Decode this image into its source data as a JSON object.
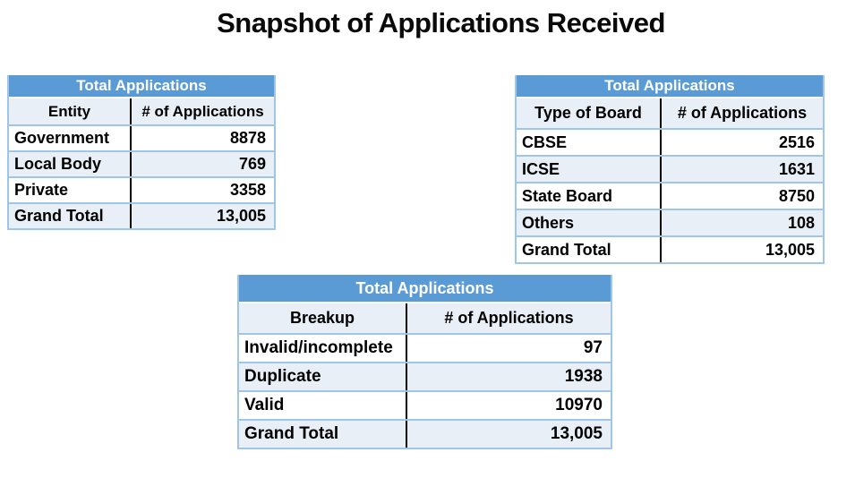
{
  "title": "Snapshot of Applications Received",
  "colors": {
    "header_blue": "#5B9BD5",
    "band_tint": "#E9EFF7",
    "border_blue": "#9FC5E8",
    "column_divider": "#000000"
  },
  "tables": [
    {
      "header": "Total Applications",
      "columns": [
        "Entity",
        "# of Applications"
      ],
      "rows": [
        {
          "label": "Government",
          "value": "8878"
        },
        {
          "label": "Local Body",
          "value": "769"
        },
        {
          "label": "Private",
          "value": "3358"
        },
        {
          "label": "Grand Total",
          "value": "13,005"
        }
      ]
    },
    {
      "header": "Total Applications",
      "columns": [
        "Type of Board",
        "# of Applications"
      ],
      "rows": [
        {
          "label": "CBSE",
          "value": "2516"
        },
        {
          "label": "ICSE",
          "value": "1631"
        },
        {
          "label": "State Board",
          "value": "8750"
        },
        {
          "label": "Others",
          "value": "108"
        },
        {
          "label": "Grand Total",
          "value": "13,005"
        }
      ]
    },
    {
      "header": "Total Applications",
      "columns": [
        "Breakup",
        "# of Applications"
      ],
      "rows": [
        {
          "label": "Invalid/incomplete",
          "value": "97"
        },
        {
          "label": "Duplicate",
          "value": "1938"
        },
        {
          "label": "Valid",
          "value": "10970"
        },
        {
          "label": "Grand Total",
          "value": "13,005"
        }
      ]
    }
  ]
}
